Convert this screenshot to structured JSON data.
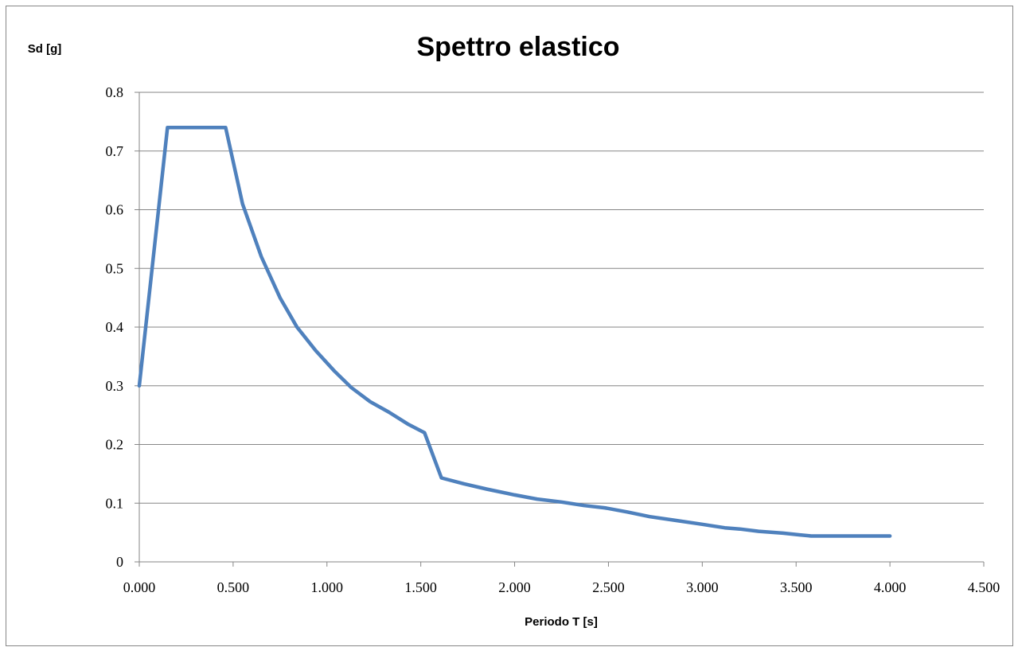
{
  "chart_data": {
    "type": "line",
    "title": "Spettro elastico",
    "xlabel": "Periodo T [s]",
    "ylabel": "Sd [g]",
    "xlim": [
      0,
      4.5
    ],
    "ylim": [
      0,
      0.8
    ],
    "x_ticks": [
      "0.000",
      "0.500",
      "1.000",
      "1.500",
      "2.000",
      "2.500",
      "3.000",
      "3.500",
      "4.000",
      "4.500"
    ],
    "y_ticks": [
      "0",
      "0.1",
      "0.2",
      "0.3",
      "0.4",
      "0.5",
      "0.6",
      "0.7",
      "0.8"
    ],
    "grid": "horizontal",
    "legend": "none",
    "line_color": "#4f81bd",
    "series": [
      {
        "x": [
          0.0,
          0.15,
          0.46,
          0.55,
          0.65,
          0.75,
          0.84,
          0.94,
          1.04,
          1.13,
          1.23,
          1.33,
          1.43,
          1.52,
          1.61,
          1.73,
          1.85,
          2.0,
          2.12,
          2.25,
          2.37,
          2.48,
          2.6,
          2.72,
          2.85,
          3.0,
          3.12,
          3.2,
          3.3,
          3.43,
          3.52,
          3.58,
          4.0
        ],
        "y": [
          0.3,
          0.74,
          0.74,
          0.61,
          0.52,
          0.45,
          0.4,
          0.36,
          0.325,
          0.297,
          0.273,
          0.255,
          0.235,
          0.22,
          0.143,
          0.133,
          0.124,
          0.114,
          0.107,
          0.102,
          0.096,
          0.092,
          0.085,
          0.077,
          0.071,
          0.064,
          0.058,
          0.056,
          0.052,
          0.049,
          0.046,
          0.044,
          0.044
        ]
      }
    ]
  }
}
